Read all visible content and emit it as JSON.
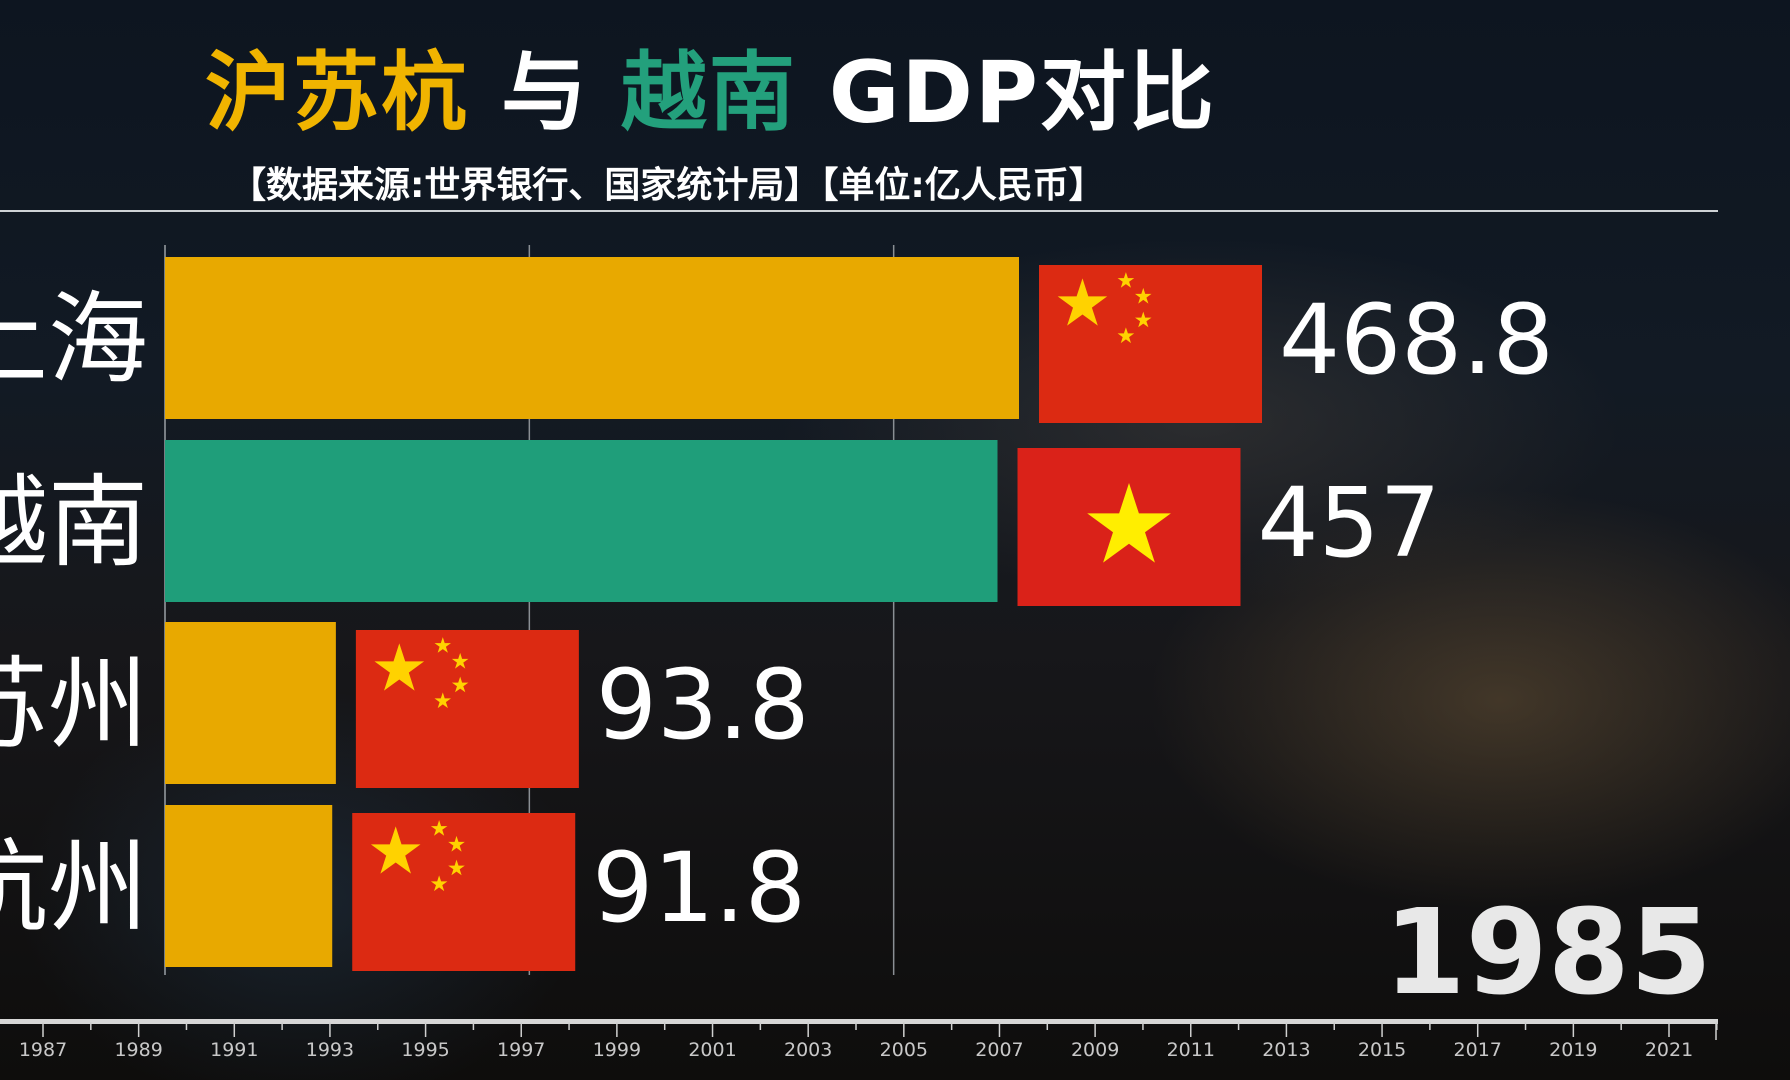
{
  "header": {
    "title_part1": "沪苏杭",
    "title_part2": "与",
    "title_part3": "越南",
    "title_part4": "GDP对比",
    "subtitle": "【数据来源:世界银行、国家统计局】【单位:亿人民币】"
  },
  "chart_data": {
    "type": "bar",
    "orientation": "horizontal",
    "year": "1985",
    "categories": [
      "上海",
      "越南",
      "苏州",
      "杭州"
    ],
    "values": [
      468.8,
      457,
      93.8,
      91.8
    ],
    "value_labels": [
      "468.8",
      "457",
      "93.8",
      "91.8"
    ],
    "flags": [
      "china",
      "vietnam",
      "china",
      "china"
    ],
    "bar_colors": [
      "#e8a900",
      "#1f9e7a",
      "#e8a900",
      "#e8a900"
    ],
    "gridlines": [
      200,
      400
    ],
    "xlim": [
      0,
      470
    ],
    "timeline_ticks": [
      "1987",
      "1989",
      "1991",
      "1993",
      "1995",
      "1997",
      "1999",
      "2001",
      "2003",
      "2005",
      "2007",
      "2009",
      "2011",
      "2013",
      "2015",
      "2017",
      "2019",
      "2021"
    ]
  }
}
